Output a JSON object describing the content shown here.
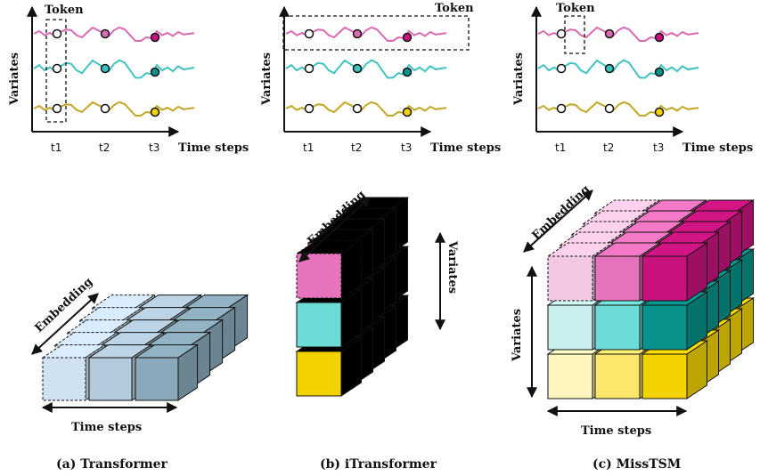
{
  "panels": [
    {
      "caption": "(a) Transformer",
      "token_label": "Token",
      "y_label": "Variates",
      "x_label": "Time steps",
      "ticks": [
        "t1",
        "t2",
        "t3"
      ],
      "cube_labels": {
        "embedding": "Embedding",
        "time": "Time steps"
      }
    },
    {
      "caption": "(b) iTransformer",
      "token_label": "Token",
      "y_label": "Variates",
      "x_label": "Time steps",
      "ticks": [
        "t1",
        "t2",
        "t3"
      ],
      "cube_labels": {
        "embedding": "Embedding",
        "variates": "Variates"
      }
    },
    {
      "caption": "(c) MissTSM",
      "token_label": "Token",
      "y_label": "Variates",
      "x_label": "Time steps",
      "ticks": [
        "t1",
        "t2",
        "t3"
      ],
      "cube_labels": {
        "embedding": "Embedding",
        "variates": "Variates",
        "time": "Time steps"
      }
    }
  ],
  "colors": {
    "series_top": "#d96bb3",
    "series_mid": "#3fc3c0",
    "series_bot": "#c2a824",
    "blue_cubes": [
      "#d0e2f2",
      "#b4cadc",
      "#8aaabb"
    ],
    "pink_cubes": [
      "#f2c8e2",
      "#e873bd",
      "#c8137f"
    ],
    "teal_cubes": [
      "#c9eeee",
      "#6edcd6",
      "#07938b"
    ],
    "yellow_cubes": [
      "#fff6bf",
      "#fde86c",
      "#f2d300"
    ]
  }
}
